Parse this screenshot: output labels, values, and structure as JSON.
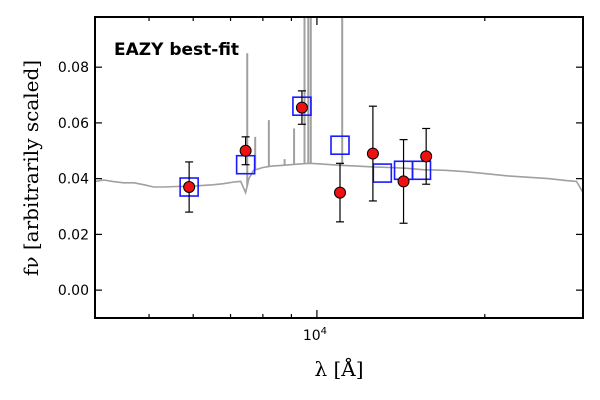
{
  "chart_data": {
    "type": "scatter",
    "title": "",
    "annotation": "EAZY best-fit",
    "xlabel": "λ [Å]",
    "ylabel": "fν [arbitrarily scaled]",
    "x_scale": "log",
    "xlim": [
      4000,
      30000
    ],
    "ylim": [
      -0.01,
      0.098
    ],
    "x_major_ticks": [
      {
        "value": 10000,
        "label": "10^4"
      }
    ],
    "x_minor_ticks": [
      5000,
      6000,
      7000,
      8000,
      9000,
      20000,
      30000
    ],
    "y_ticks": [
      0.0,
      0.02,
      0.04,
      0.06,
      0.08
    ],
    "y_tick_labels": [
      "0.00",
      "0.02",
      "0.04",
      "0.06",
      "0.08"
    ],
    "grid": false,
    "colors": {
      "observed_fill": "#ee1111",
      "observed_edge": "#000000",
      "model_box": "#1a1aff",
      "sed": "#a0a0a0",
      "annotation": "#ff0000"
    },
    "series": [
      {
        "kind": "observed_photometry",
        "points": [
          {
            "x": 5900,
            "y": 0.037,
            "err": 0.009
          },
          {
            "x": 7450,
            "y": 0.05,
            "err": 0.005
          },
          {
            "x": 9400,
            "y": 0.0655,
            "err": 0.006
          },
          {
            "x": 11000,
            "y": 0.035,
            "err": 0.0105
          },
          {
            "x": 12600,
            "y": 0.049,
            "err": 0.017
          },
          {
            "x": 14300,
            "y": 0.039,
            "err": 0.015
          },
          {
            "x": 15700,
            "y": 0.048,
            "err": 0.01
          }
        ]
      },
      {
        "kind": "model_photometry",
        "points": [
          {
            "x": 5900,
            "y": 0.037
          },
          {
            "x": 7450,
            "y": 0.045
          },
          {
            "x": 9400,
            "y": 0.066
          },
          {
            "x": 11000,
            "y": 0.052
          },
          {
            "x": 13100,
            "y": 0.042
          },
          {
            "x": 14300,
            "y": 0.043
          },
          {
            "x": 15400,
            "y": 0.043
          }
        ]
      },
      {
        "kind": "best_fit_sed",
        "points": [
          [
            4000,
            0.039
          ],
          [
            4150,
            0.0395
          ],
          [
            4300,
            0.039
          ],
          [
            4500,
            0.0385
          ],
          [
            4700,
            0.0385
          ],
          [
            4900,
            0.0378
          ],
          [
            5100,
            0.037
          ],
          [
            5300,
            0.037
          ],
          [
            5600,
            0.0372
          ],
          [
            5900,
            0.0372
          ],
          [
            6200,
            0.0375
          ],
          [
            6500,
            0.0378
          ],
          [
            6800,
            0.0382
          ],
          [
            7100,
            0.0388
          ],
          [
            7300,
            0.039
          ],
          [
            7450,
            0.035
          ],
          [
            7550,
            0.04
          ],
          [
            7700,
            0.043
          ],
          [
            8000,
            0.044
          ],
          [
            8300,
            0.0445
          ],
          [
            8700,
            0.0448
          ],
          [
            9200,
            0.0452
          ],
          [
            9700,
            0.0455
          ],
          [
            10300,
            0.0452
          ],
          [
            11000,
            0.0448
          ],
          [
            11800,
            0.0445
          ],
          [
            12600,
            0.0442
          ],
          [
            13500,
            0.044
          ],
          [
            14500,
            0.0437
          ],
          [
            15500,
            0.0432
          ],
          [
            17000,
            0.043
          ],
          [
            18500,
            0.0425
          ],
          [
            20000,
            0.0418
          ],
          [
            22000,
            0.041
          ],
          [
            24000,
            0.0405
          ],
          [
            26000,
            0.04
          ],
          [
            28000,
            0.0393
          ],
          [
            29200,
            0.039
          ],
          [
            30000,
            0.035
          ]
        ],
        "emission_lines": [
          {
            "x": 7500,
            "peak": 0.085
          },
          {
            "x": 7750,
            "peak": 0.055
          },
          {
            "x": 8200,
            "peak": 0.061
          },
          {
            "x": 8750,
            "peak": 0.047
          },
          {
            "x": 9100,
            "peak": 0.058
          },
          {
            "x": 9500,
            "peak": 0.12
          },
          {
            "x": 9650,
            "peak": 0.12
          },
          {
            "x": 9750,
            "peak": 0.12
          },
          {
            "x": 11100,
            "peak": 0.12
          }
        ]
      }
    ]
  }
}
